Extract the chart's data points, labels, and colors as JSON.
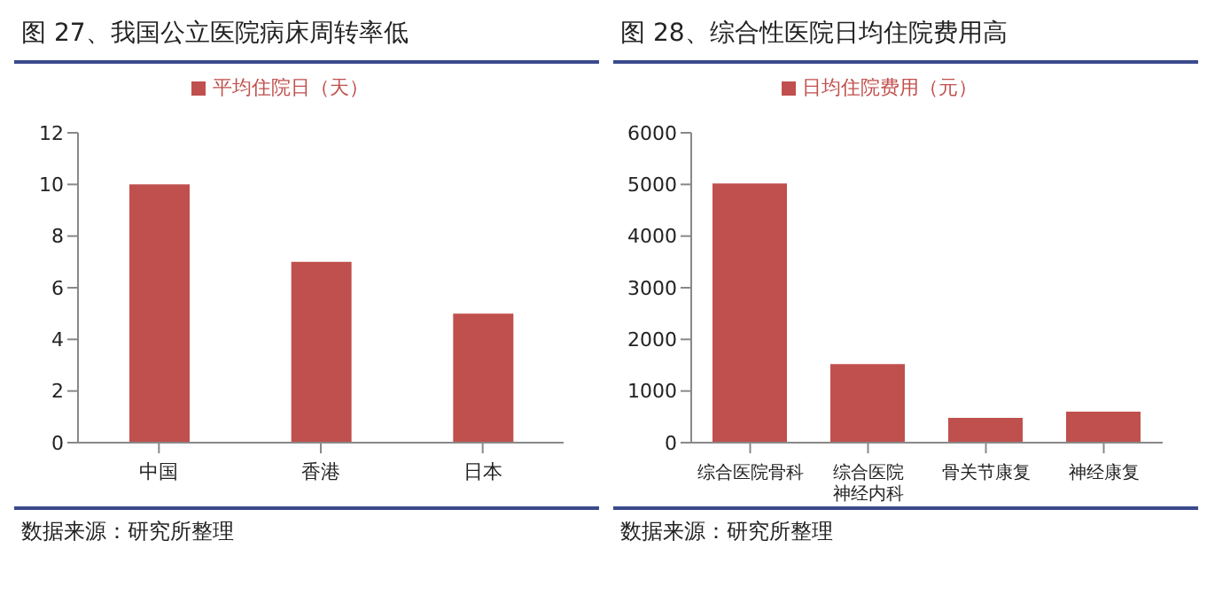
{
  "chart_data": [
    {
      "type": "bar",
      "title": "图 27、我国公立医院病床周转率低",
      "categories": [
        "中国",
        "香港",
        "日本"
      ],
      "series": [
        {
          "name": "平均住院日（天）",
          "color": "#c0504d",
          "values": [
            10,
            7,
            5
          ]
        }
      ],
      "ylim": [
        0,
        12
      ],
      "yticks": [
        0,
        2,
        4,
        6,
        8,
        10,
        12
      ],
      "legend": "top",
      "annotations": [
        "数据来源：研究所整理"
      ]
    },
    {
      "type": "bar",
      "title": "图 28、综合性医院日均住院费用高",
      "categories": [
        "综合医院骨科",
        "综合医院神经内科",
        "骨关节康复",
        "神经康复"
      ],
      "series": [
        {
          "name": "日均住院费用（元）",
          "color": "#c0504d",
          "values": [
            5020,
            1520,
            480,
            600
          ]
        }
      ],
      "ylim": [
        0,
        6000
      ],
      "yticks": [
        0,
        1000,
        2000,
        3000,
        4000,
        5000,
        6000
      ],
      "legend": "top",
      "annotations": [
        "数据来源：研究所整理"
      ]
    }
  ]
}
